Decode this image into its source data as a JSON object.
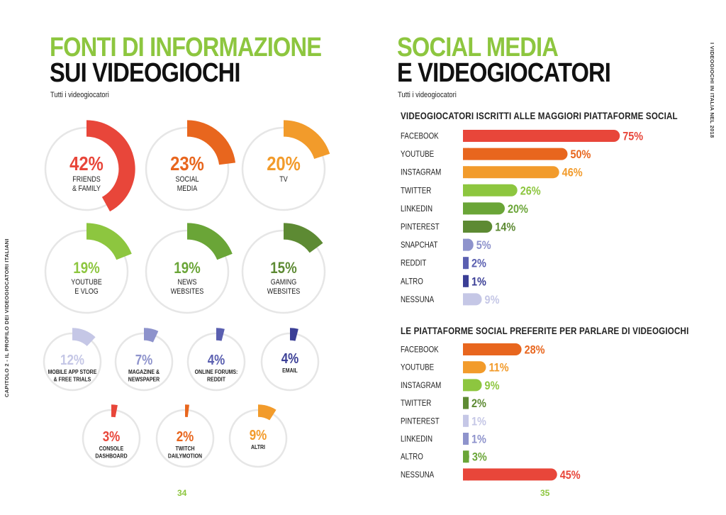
{
  "left": {
    "title_line1": "FONTI DI INFORMAZIONE",
    "title_line2": "SUI VIDEOGIOCHI",
    "subtitle": "Tutti i videogiocatori",
    "page_number": "34",
    "sidebar_text": "CAPITOLO 2 - IL PROFILO DEI VIDEOGIOCATORI ITALIANI"
  },
  "right": {
    "title_line1": "SOCIAL MEDIA",
    "title_line2": "E VIDEOGIOCATORI",
    "subtitle": "Tutti i videogiocatori",
    "page_number": "35",
    "sidebar_text": "I VIDEOGIOCHI IN ITALIA NEL 2018"
  },
  "colors": {
    "green_title": "#8dc63f",
    "red": "#e8463a",
    "orange": "#e8661e",
    "light_orange": "#f29b2b",
    "light_green": "#8dc63f",
    "dark_green": "#5d8a33",
    "lavender": "#8e93cc",
    "navy": "#3b3f96",
    "pale_lavender": "#c5c7e6"
  },
  "chart_data": [
    {
      "type": "pie",
      "title": "",
      "slices": [
        {
          "label": "FRIENDS & FAMILY",
          "value": 42,
          "display": "42%",
          "color": "#e8463a"
        },
        {
          "label": "SOCIAL MEDIA",
          "value": 23,
          "display": "23%",
          "color": "#e8661e"
        },
        {
          "label": "TV",
          "value": 20,
          "display": "20%",
          "color": "#f29b2b"
        },
        {
          "label": "YOUTUBE E VLOG",
          "value": 19,
          "display": "19%",
          "color": "#8dc63f"
        },
        {
          "label": "NEWS WEBSITES",
          "value": 19,
          "display": "19%",
          "color": "#6aa537"
        },
        {
          "label": "GAMING WEBSITES",
          "value": 15,
          "display": "15%",
          "color": "#5d8a33"
        },
        {
          "label": "MOBILE APP STORE & FREE TRIALS",
          "value": 12,
          "display": "12%",
          "color": "#c5c7e6"
        },
        {
          "label": "MAGAZINE & NEWSPAPER",
          "value": 7,
          "display": "7%",
          "color": "#8e93cc"
        },
        {
          "label": "ONLINE FORUMS: REDDIT",
          "value": 4,
          "display": "4%",
          "color": "#5a5fb0"
        },
        {
          "label": "EMAIL",
          "value": 4,
          "display": "4%",
          "color": "#3b3f96"
        },
        {
          "label": "CONSOLE DASHBOARD",
          "value": 3,
          "display": "3%",
          "color": "#e8463a"
        },
        {
          "label": "TWITCH DAILYMOTION",
          "value": 2,
          "display": "2%",
          "color": "#e8661e"
        },
        {
          "label": "ALTRI",
          "value": 9,
          "display": "9%",
          "color": "#f29b2b"
        }
      ]
    },
    {
      "type": "bar",
      "title": "VIDEOGIOCATORI ISCRITTI ALLE MAGGIORI PIATTAFORME SOCIAL",
      "categories": [
        "FACEBOOK",
        "YOUTUBE",
        "INSTAGRAM",
        "TWITTER",
        "LINKEDIN",
        "PINTEREST",
        "SNAPCHAT",
        "REDDIT",
        "ALTRO",
        "NESSUNA"
      ],
      "values": [
        75,
        50,
        46,
        26,
        20,
        14,
        5,
        2,
        1,
        9
      ],
      "labels": [
        "75%",
        "50%",
        "46%",
        "26%",
        "20%",
        "14%",
        "5%",
        "2%",
        "1%",
        "9%"
      ],
      "colors": [
        "#e8463a",
        "#e8661e",
        "#f29b2b",
        "#8dc63f",
        "#6aa537",
        "#5d8a33",
        "#8e93cc",
        "#5a5fb0",
        "#3b3f96",
        "#c5c7e6"
      ]
    },
    {
      "type": "bar",
      "title": "LE PIATTAFORME SOCIAL PREFERITE PER PARLARE DI VIDEOGIOCHI",
      "categories": [
        "FACEBOOK",
        "YOUTUBE",
        "INSTAGRAM",
        "TWITTER",
        "PINTEREST",
        "LINKEDIN",
        "ALTRO",
        "NESSUNA"
      ],
      "values": [
        28,
        11,
        9,
        2,
        1,
        1,
        3,
        45
      ],
      "labels": [
        "28%",
        "11%",
        "9%",
        "2%",
        "1%",
        "1%",
        "3%",
        "45%"
      ],
      "colors": [
        "#e8661e",
        "#f29b2b",
        "#8dc63f",
        "#5d8a33",
        "#c5c7e6",
        "#8e93cc",
        "#6aa537",
        "#e8463a"
      ]
    }
  ]
}
